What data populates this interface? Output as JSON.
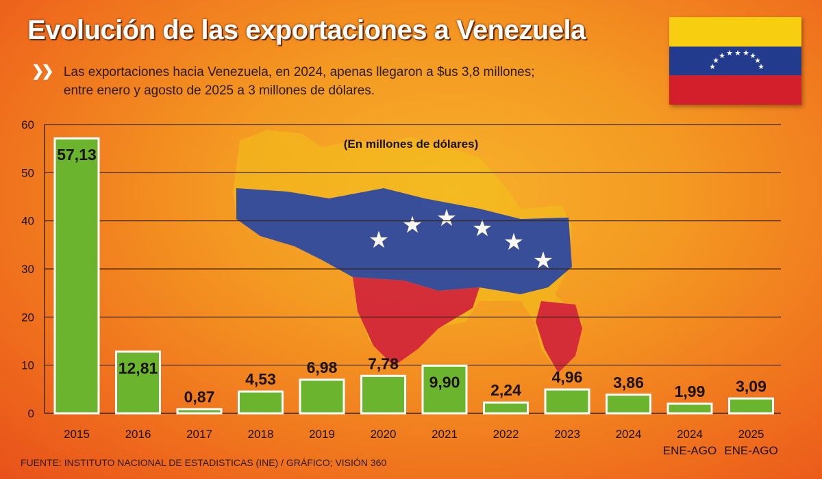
{
  "header": {
    "title": "Evolución de las exportaciones a Venezuela",
    "subtitle_line1": "Las exportaciones hacia Venezuela, en 2024, apenas llegaron a $us 3,8 millones;",
    "subtitle_line2": "entre enero y agosto de 2025 a 3 millones de dólares.",
    "chevron_icon": "double-chevron-right-icon"
  },
  "flag": {
    "name": "venezuela-flag",
    "colors": [
      "#f7cf10",
      "#223b8c",
      "#d31f2c"
    ]
  },
  "footer": {
    "source": "FUENTE: INSTITUTO NACIONAL DE ESTADISTICAS (INE) / GRÁFICO; VISIÓN 360"
  },
  "chart_data": {
    "type": "bar",
    "unit_label": "(En millones de dólares)",
    "categories": [
      "2015",
      "2016",
      "2017",
      "2018",
      "2019",
      "2020",
      "2021",
      "2022",
      "2023",
      "2024",
      "2024\nENE-AGO",
      "2025\nENE-AGO"
    ],
    "values": [
      57.13,
      12.81,
      0.87,
      4.53,
      6.98,
      7.78,
      9.9,
      2.24,
      4.96,
      3.86,
      1.99,
      3.09
    ],
    "value_labels": [
      "57,13",
      "12,81",
      "0,87",
      "4,53",
      "6,98",
      "7,78",
      "9,90",
      "2,24",
      "4,96",
      "3,86",
      "1,99",
      "3,09"
    ],
    "yticks": [
      0,
      10,
      20,
      30,
      40,
      50,
      60
    ],
    "ylim": [
      0,
      60
    ],
    "grid": true,
    "bar_color": "#6bb52e",
    "background_image": "venezuela-map-flag"
  }
}
